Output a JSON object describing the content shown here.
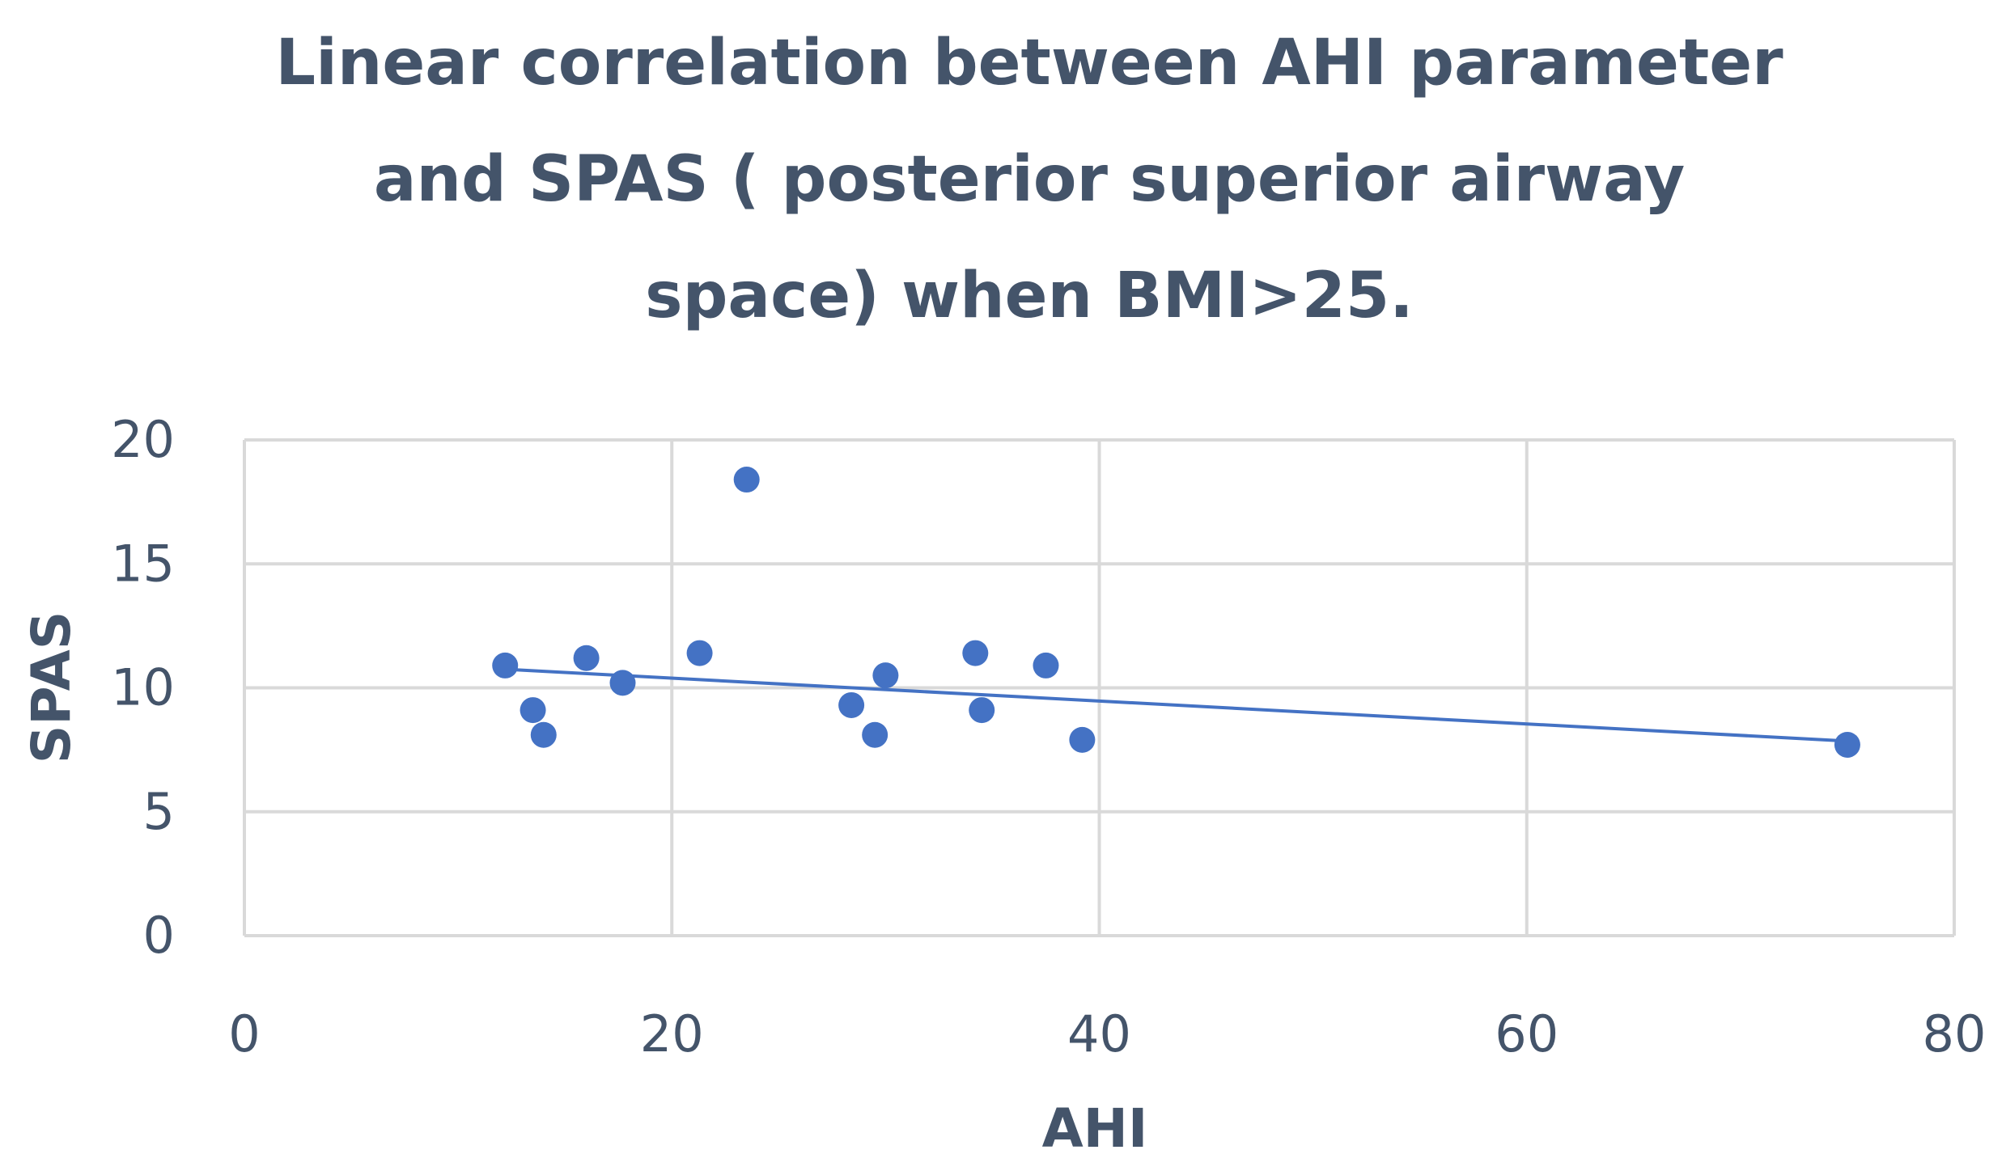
{
  "chart_data": {
    "type": "scatter",
    "title_lines": [
      "Linear correlation between AHI parameter",
      "and SPAS ( posterior superior airway",
      "space) when BMI>25."
    ],
    "xlabel": "AHI",
    "ylabel": "SPAS",
    "xlim": [
      0,
      80
    ],
    "ylim": [
      0,
      20
    ],
    "xticks": [
      "0",
      "20",
      "40",
      "60",
      "80"
    ],
    "yticks": [
      "0",
      "5",
      "10",
      "15",
      "20"
    ],
    "grid": true,
    "color": "#4472c4",
    "series": [
      {
        "name": "SPAS",
        "points": [
          {
            "x": 12.2,
            "y": 10.9
          },
          {
            "x": 13.5,
            "y": 9.1
          },
          {
            "x": 14.0,
            "y": 8.1
          },
          {
            "x": 16.0,
            "y": 11.2
          },
          {
            "x": 17.7,
            "y": 10.2
          },
          {
            "x": 21.3,
            "y": 11.4
          },
          {
            "x": 23.5,
            "y": 18.4
          },
          {
            "x": 28.4,
            "y": 9.3
          },
          {
            "x": 29.5,
            "y": 8.1
          },
          {
            "x": 30.0,
            "y": 10.5
          },
          {
            "x": 34.2,
            "y": 11.4
          },
          {
            "x": 34.5,
            "y": 9.1
          },
          {
            "x": 37.5,
            "y": 10.9
          },
          {
            "x": 39.2,
            "y": 7.9
          },
          {
            "x": 75.0,
            "y": 7.7
          }
        ]
      }
    ],
    "trendline": {
      "type": "linear",
      "x": [
        12.2,
        75.0
      ],
      "y": [
        10.75,
        7.85
      ]
    }
  }
}
